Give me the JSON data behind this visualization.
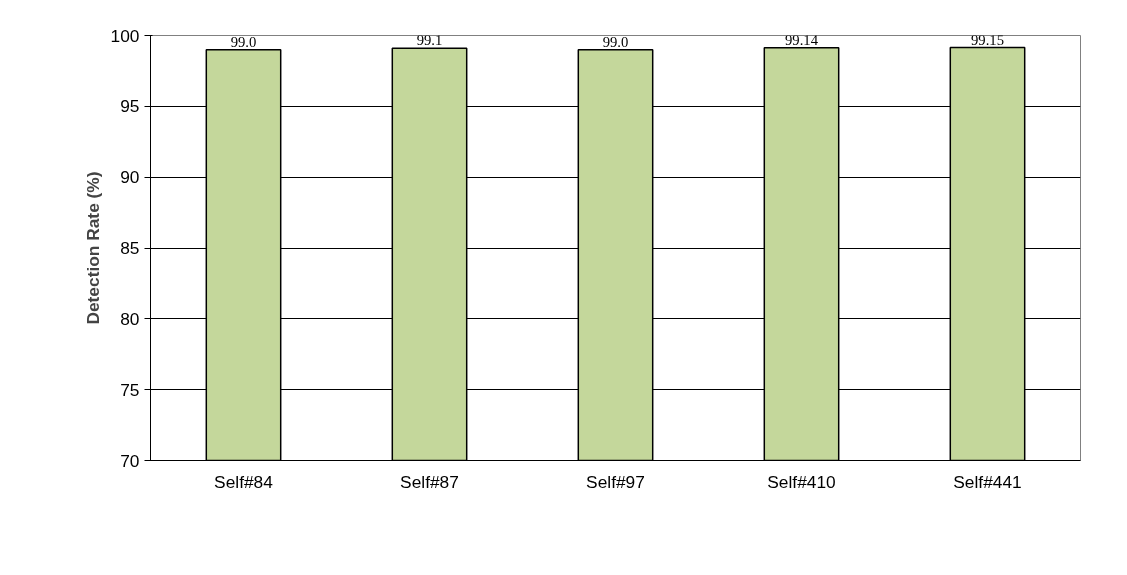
{
  "chart_data": {
    "type": "bar",
    "ylabel": "Detection Rate (%)",
    "categories": [
      "Self#84",
      "Self#87",
      "Self#97",
      "Self#410",
      "Self#441"
    ],
    "values": [
      99.0,
      99.1,
      99.0,
      99.14,
      99.15
    ],
    "value_labels": [
      "99.0",
      "99.1",
      "99.0",
      "99.14",
      "99.15"
    ],
    "color": "#c4d79b",
    "ylim": [
      70,
      100
    ],
    "yticks": [
      70,
      75,
      80,
      85,
      90,
      95,
      100
    ],
    "grid": "y"
  }
}
